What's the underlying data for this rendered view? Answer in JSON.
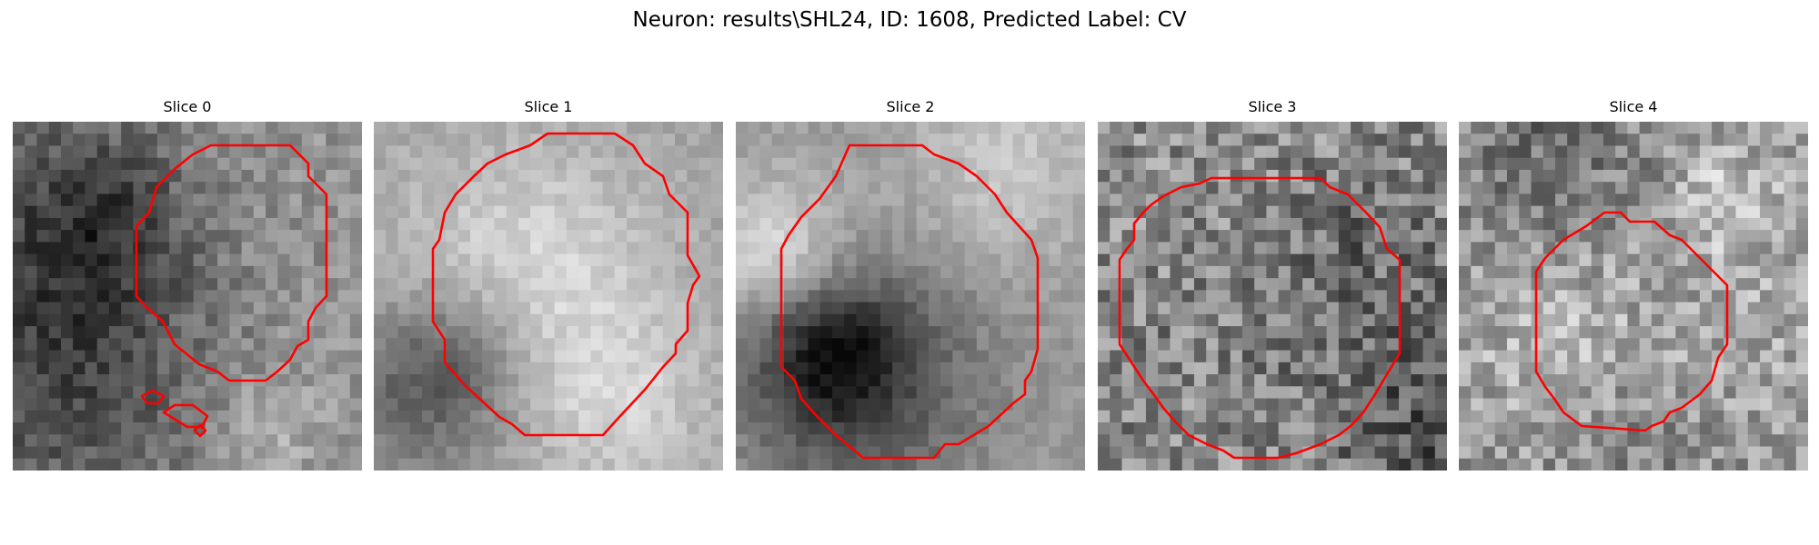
{
  "figure": {
    "title": "Neuron: results\\SHL24, ID: 1608, Predicted Label: CV",
    "contour_color": "#ff0000"
  },
  "panels": [
    {
      "title": "Slice 0",
      "seed": 11,
      "brightness": 0.58,
      "contrast": 0.3,
      "noise": 0.22
    },
    {
      "title": "Slice 1",
      "seed": 23,
      "brightness": 0.62,
      "contrast": 0.32,
      "noise": 0.12
    },
    {
      "title": "Slice 2",
      "seed": 37,
      "brightness": 0.6,
      "contrast": 0.34,
      "noise": 0.12
    },
    {
      "title": "Slice 3",
      "seed": 41,
      "brightness": 0.55,
      "contrast": 0.16,
      "noise": 0.42
    },
    {
      "title": "Slice 4",
      "seed": 59,
      "brightness": 0.62,
      "contrast": 0.18,
      "noise": 0.36
    }
  ]
}
